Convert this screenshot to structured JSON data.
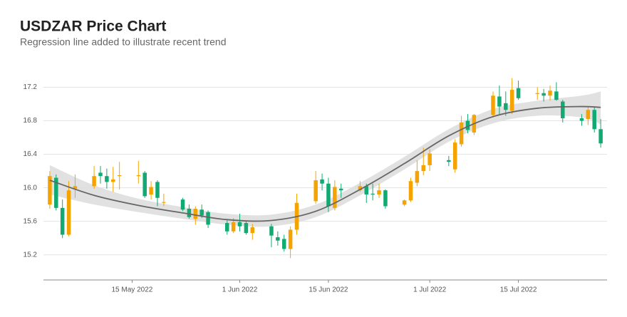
{
  "chart_data": {
    "type": "candlestick",
    "title": "USDZAR Price Chart",
    "subtitle": "Regression line added to illustrate recent trend",
    "x": [
      "2022-05-02",
      "2022-05-03",
      "2022-05-04",
      "2022-05-05",
      "2022-05-06",
      "2022-05-09",
      "2022-05-10",
      "2022-05-11",
      "2022-05-12",
      "2022-05-13",
      "2022-05-16",
      "2022-05-17",
      "2022-05-18",
      "2022-05-19",
      "2022-05-20",
      "2022-05-23",
      "2022-05-24",
      "2022-05-25",
      "2022-05-26",
      "2022-05-27",
      "2022-05-30",
      "2022-05-31",
      "2022-06-01",
      "2022-06-02",
      "2022-06-03",
      "2022-06-06",
      "2022-06-07",
      "2022-06-08",
      "2022-06-09",
      "2022-06-10",
      "2022-06-13",
      "2022-06-14",
      "2022-06-15",
      "2022-06-16",
      "2022-06-17",
      "2022-06-20",
      "2022-06-21",
      "2022-06-22",
      "2022-06-23",
      "2022-06-24",
      "2022-06-27",
      "2022-06-28",
      "2022-06-29",
      "2022-06-30",
      "2022-07-01",
      "2022-07-04",
      "2022-07-05",
      "2022-07-06",
      "2022-07-07",
      "2022-07-08",
      "2022-07-11",
      "2022-07-12",
      "2022-07-13",
      "2022-07-14",
      "2022-07-15",
      "2022-07-18",
      "2022-07-19",
      "2022-07-20",
      "2022-07-21",
      "2022-07-22",
      "2022-07-25",
      "2022-07-26",
      "2022-07-27",
      "2022-07-28"
    ],
    "open": [
      15.8,
      16.12,
      15.76,
      15.44,
      15.99,
      16.02,
      16.18,
      16.14,
      16.07,
      16.14,
      16.14,
      16.18,
      15.92,
      16.07,
      15.82,
      15.86,
      15.75,
      15.63,
      15.74,
      15.71,
      15.58,
      15.48,
      15.59,
      15.58,
      15.46,
      15.54,
      15.41,
      15.39,
      15.27,
      15.5,
      15.84,
      16.1,
      16.05,
      15.76,
      15.99,
      15.97,
      16.02,
      15.93,
      15.92,
      15.97,
      15.8,
      15.85,
      16.06,
      16.2,
      16.27,
      16.33,
      16.22,
      16.52,
      16.8,
      16.66,
      16.87,
      17.09,
      17.01,
      16.92,
      17.19,
      17.12,
      17.13,
      17.1,
      17.15,
      17.03,
      16.83,
      16.82,
      16.93,
      16.7
    ],
    "high": [
      16.2,
      16.16,
      15.86,
      16.08,
      16.16,
      16.26,
      16.26,
      16.23,
      16.25,
      16.31,
      16.32,
      16.2,
      16.08,
      16.09,
      15.93,
      15.88,
      15.8,
      15.78,
      15.8,
      15.73,
      15.61,
      15.64,
      15.69,
      15.61,
      15.57,
      15.57,
      15.48,
      15.44,
      15.54,
      15.93,
      16.2,
      16.17,
      16.12,
      16.09,
      16.05,
      16.08,
      16.05,
      16.05,
      16.05,
      15.98,
      15.86,
      16.12,
      16.33,
      16.48,
      16.46,
      16.38,
      16.58,
      16.86,
      16.88,
      16.88,
      17.15,
      17.22,
      17.15,
      17.31,
      17.28,
      17.2,
      17.18,
      17.22,
      17.26,
      17.05,
      16.88,
      16.97,
      16.97,
      16.82
    ],
    "low": [
      15.75,
      15.73,
      15.4,
      15.42,
      15.88,
      15.99,
      16.05,
      15.99,
      15.95,
      15.98,
      16.05,
      15.88,
      15.86,
      15.78,
      15.78,
      15.72,
      15.63,
      15.56,
      15.64,
      15.52,
      15.44,
      15.46,
      15.48,
      15.44,
      15.38,
      15.29,
      15.31,
      15.24,
      15.16,
      15.44,
      15.81,
      15.97,
      15.71,
      15.73,
      15.88,
      15.95,
      15.82,
      15.85,
      15.88,
      15.75,
      15.78,
      15.83,
      16.02,
      16.15,
      16.2,
      16.26,
      16.18,
      16.49,
      16.65,
      16.63,
      16.84,
      16.88,
      16.86,
      16.88,
      17.05,
      17.05,
      17.03,
      17.04,
      17.04,
      16.78,
      16.74,
      16.75,
      16.66,
      16.48
    ],
    "close": [
      16.14,
      15.76,
      15.44,
      15.97,
      16.02,
      16.14,
      16.14,
      16.07,
      16.1,
      16.15,
      16.15,
      15.9,
      16.01,
      15.88,
      15.83,
      15.74,
      15.65,
      15.75,
      15.67,
      15.56,
      15.48,
      15.59,
      15.54,
      15.46,
      15.53,
      15.43,
      15.37,
      15.27,
      15.5,
      15.82,
      16.09,
      16.05,
      15.78,
      16.01,
      15.97,
      16.02,
      15.92,
      15.92,
      15.97,
      15.78,
      15.85,
      16.08,
      16.2,
      16.27,
      16.41,
      16.31,
      16.54,
      16.78,
      16.69,
      16.87,
      17.1,
      16.97,
      16.93,
      17.17,
      17.07,
      17.13,
      17.1,
      17.16,
      17.05,
      16.83,
      16.8,
      16.93,
      16.7,
      16.53
    ],
    "up_color": "#f5a300",
    "down_color": "#13a972",
    "trend": {
      "x": [
        "2022-05-02",
        "2022-05-09",
        "2022-05-16",
        "2022-05-23",
        "2022-05-30",
        "2022-06-06",
        "2022-06-13",
        "2022-06-20",
        "2022-06-27",
        "2022-07-04",
        "2022-07-11",
        "2022-07-18",
        "2022-07-25",
        "2022-07-28"
      ],
      "values": [
        16.09,
        15.91,
        15.79,
        15.7,
        15.62,
        15.61,
        15.72,
        15.98,
        16.29,
        16.62,
        16.85,
        16.95,
        16.97,
        16.96
      ],
      "lower": [
        15.92,
        15.8,
        15.71,
        15.63,
        15.56,
        15.54,
        15.65,
        15.91,
        16.22,
        16.55,
        16.77,
        16.86,
        16.84,
        16.76
      ],
      "upper": [
        16.27,
        16.03,
        15.87,
        15.77,
        15.69,
        15.68,
        15.8,
        16.06,
        16.37,
        16.7,
        16.94,
        17.04,
        17.1,
        17.15
      ],
      "color": "#666666",
      "band_color": "#dcdcdc"
    },
    "xlim": [
      "2022-05-01",
      "2022-07-29"
    ],
    "xticks": [
      {
        "value": "2022-05-15",
        "label": "15 May 2022"
      },
      {
        "value": "2022-06-01",
        "label": "1 Jun 2022"
      },
      {
        "value": "2022-06-15",
        "label": "15 Jun 2022"
      },
      {
        "value": "2022-07-01",
        "label": "1 Jul 2022"
      },
      {
        "value": "2022-07-15",
        "label": "15 Jul 2022"
      }
    ],
    "ylim": [
      14.9,
      17.4
    ],
    "yticks": [
      15.2,
      15.6,
      {
        "value": 16,
        "label": "16.0"
      },
      16.4,
      16.8,
      17.2
    ],
    "grid": true
  }
}
